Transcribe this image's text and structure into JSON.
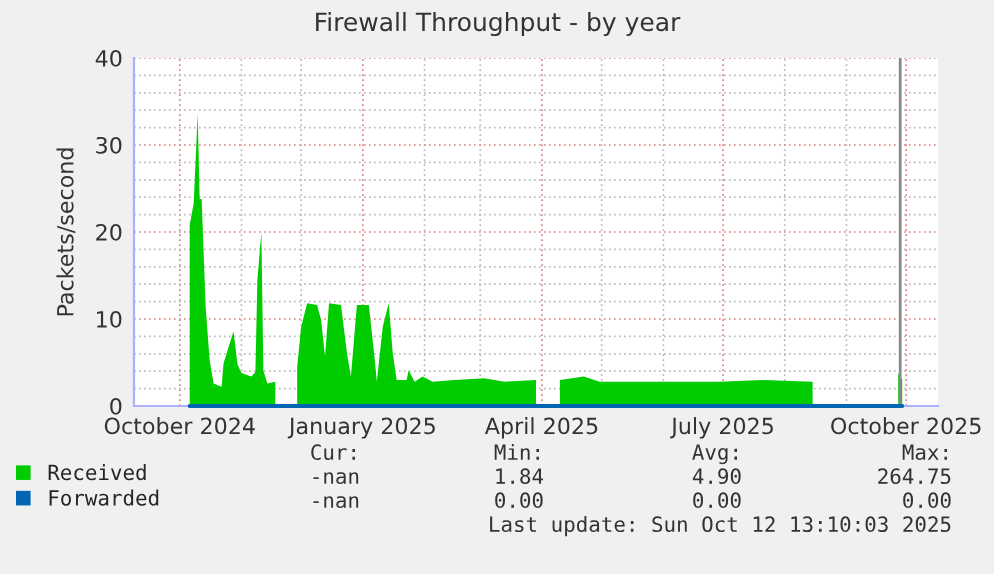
{
  "chart_data": {
    "type": "area",
    "title": "Firewall Throughput - by year",
    "ylabel": "Packets/second",
    "series": [
      {
        "name": "Received",
        "color": "#00cc00",
        "x": [
          "2024-10-06",
          "2024-10-08",
          "2024-10-10",
          "2024-10-11",
          "2024-10-12",
          "2024-10-14",
          "2024-10-16",
          "2024-10-18",
          "2024-10-22",
          "2024-10-23",
          "2024-10-28",
          "2024-10-30",
          "2024-11-01",
          "2024-11-06",
          "2024-11-08",
          "2024-11-09",
          "2024-11-11",
          "2024-11-12",
          "2024-11-14",
          "2024-11-18",
          "2024-11-23",
          "2024-11-29",
          "2024-12-01",
          "2024-12-04",
          "2024-12-09",
          "2024-12-11",
          "2024-12-13",
          "2024-12-15",
          "2024-12-21",
          "2024-12-24",
          "2024-12-26",
          "2024-12-29",
          "2025-01-04",
          "2025-01-07",
          "2025-01-08",
          "2025-01-11",
          "2025-01-14",
          "2025-01-16",
          "2025-01-18",
          "2025-01-23",
          "2025-01-24",
          "2025-01-27",
          "2025-01-31",
          "2025-02-05",
          "2025-02-16",
          "2025-03-03",
          "2025-03-13",
          "2025-03-29",
          "2025-04-04",
          "2025-04-10",
          "2025-04-22",
          "2025-04-30",
          "2025-05-30",
          "2025-06-29",
          "2025-07-21",
          "2025-08-15",
          "2025-09-05",
          "2025-09-27",
          "2025-09-28",
          "2025-09-29"
        ],
        "values": [
          20.8,
          23.3,
          33.6,
          23.8,
          23.8,
          11.4,
          5.3,
          2.6,
          2.2,
          4.9,
          8.6,
          4.8,
          3.8,
          3.4,
          3.9,
          14.5,
          20.0,
          4.1,
          2.6,
          2.8,
          null,
          4.5,
          9.1,
          11.8,
          11.6,
          9.9,
          5.7,
          11.8,
          11.6,
          6.1,
          3.4,
          11.6,
          11.6,
          5.3,
          2.8,
          9.1,
          11.8,
          6.1,
          3.0,
          3.0,
          4.1,
          2.8,
          3.4,
          2.8,
          3.0,
          3.2,
          2.8,
          3.0,
          null,
          3.0,
          3.4,
          2.8,
          2.8,
          2.8,
          3.0,
          2.8,
          null,
          3.8,
          3.1,
          3.1
        ]
      },
      {
        "name": "Forwarded",
        "type": "line",
        "color": "#0066b3",
        "x": [
          "2024-10-06",
          "2025-09-29"
        ],
        "values": [
          0,
          0
        ]
      }
    ],
    "xlim": [
      "2024-09-08",
      "2025-10-17"
    ],
    "xticks": [
      {
        "value": "2024-10-01",
        "label": "October 2024"
      },
      {
        "value": "2024-11-01",
        "label": null
      },
      {
        "value": "2024-12-01",
        "label": null
      },
      {
        "value": "2025-01-01",
        "label": "January 2025"
      },
      {
        "value": "2025-02-01",
        "label": null
      },
      {
        "value": "2025-03-01",
        "label": null
      },
      {
        "value": "2025-04-01",
        "label": "April 2025"
      },
      {
        "value": "2025-05-01",
        "label": null
      },
      {
        "value": "2025-06-01",
        "label": null
      },
      {
        "value": "2025-07-01",
        "label": "July 2025"
      },
      {
        "value": "2025-08-01",
        "label": null
      },
      {
        "value": "2025-09-01",
        "label": null
      },
      {
        "value": "2025-10-01",
        "label": "October 2025"
      }
    ],
    "ylim": [
      0,
      40
    ],
    "yticks": [
      0,
      {
        "value": 2,
        "label": null
      },
      {
        "value": 4,
        "label": null
      },
      {
        "value": 6,
        "label": null
      },
      {
        "value": 8,
        "label": null
      },
      10,
      {
        "value": 12,
        "label": null
      },
      {
        "value": 14,
        "label": null
      },
      {
        "value": 16,
        "label": null
      },
      {
        "value": 18,
        "label": null
      },
      20,
      {
        "value": 22,
        "label": null
      },
      {
        "value": 24,
        "label": null
      },
      {
        "value": 26,
        "label": null
      },
      {
        "value": 28,
        "label": null
      },
      30,
      {
        "value": 32,
        "label": null
      },
      {
        "value": 34,
        "label": null
      },
      {
        "value": 36,
        "label": null
      },
      {
        "value": 38,
        "label": null
      },
      40
    ],
    "ref_lines": [
      {
        "axis": "x",
        "value": "2025-09-28",
        "color": "#888888"
      }
    ],
    "grid": true,
    "legend": "bottom left",
    "annotations": [
      "Cur:",
      "Min:",
      "Avg:",
      "Max:",
      "-nan",
      "1.84",
      "4.90",
      "264.75",
      "-nan",
      "0.00",
      "0.00",
      "0.00",
      "Last update: Sun Oct 12 13:10:03 2025"
    ]
  }
}
